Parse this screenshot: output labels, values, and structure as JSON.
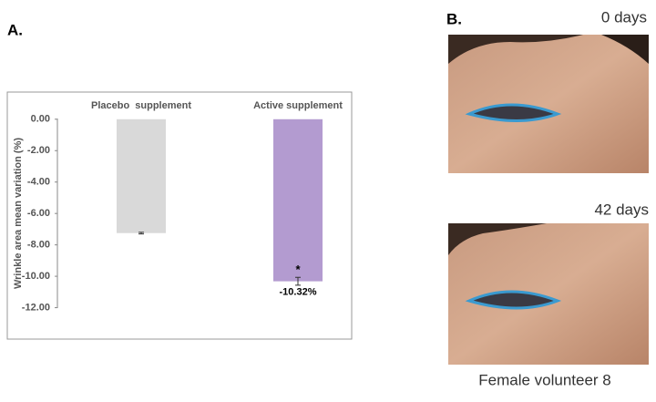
{
  "panel_a_label": "A.",
  "panel_b_label": "B.",
  "chart_data": {
    "type": "bar",
    "categories": [
      "Placebo  supplement",
      "Active supplement"
    ],
    "values": [
      -7.25,
      -10.32
    ],
    "errors": [
      0.05,
      0.25
    ],
    "value_labels": [
      null,
      "-10.32%"
    ],
    "annotations": [
      null,
      "*"
    ],
    "colors": [
      "#d9d9d9",
      "#b39bd0"
    ],
    "y_label": "Wrinkle area mean variation (%)",
    "ylim": [
      -14,
      1.7
    ],
    "yticks": [
      {
        "value": 0,
        "label": "0.00"
      },
      {
        "value": -2,
        "label": "-2.00"
      },
      {
        "value": -4,
        "label": "-4.00"
      },
      {
        "value": -6,
        "label": "-6.00"
      },
      {
        "value": -8,
        "label": "-8.00"
      },
      {
        "value": -10,
        "label": "-10.00"
      },
      {
        "value": -12,
        "label": "-12.00"
      }
    ],
    "grid": false
  },
  "photos": {
    "top_caption": "0 days",
    "bottom_caption": "42 days",
    "subject": "Female volunteer 8"
  }
}
